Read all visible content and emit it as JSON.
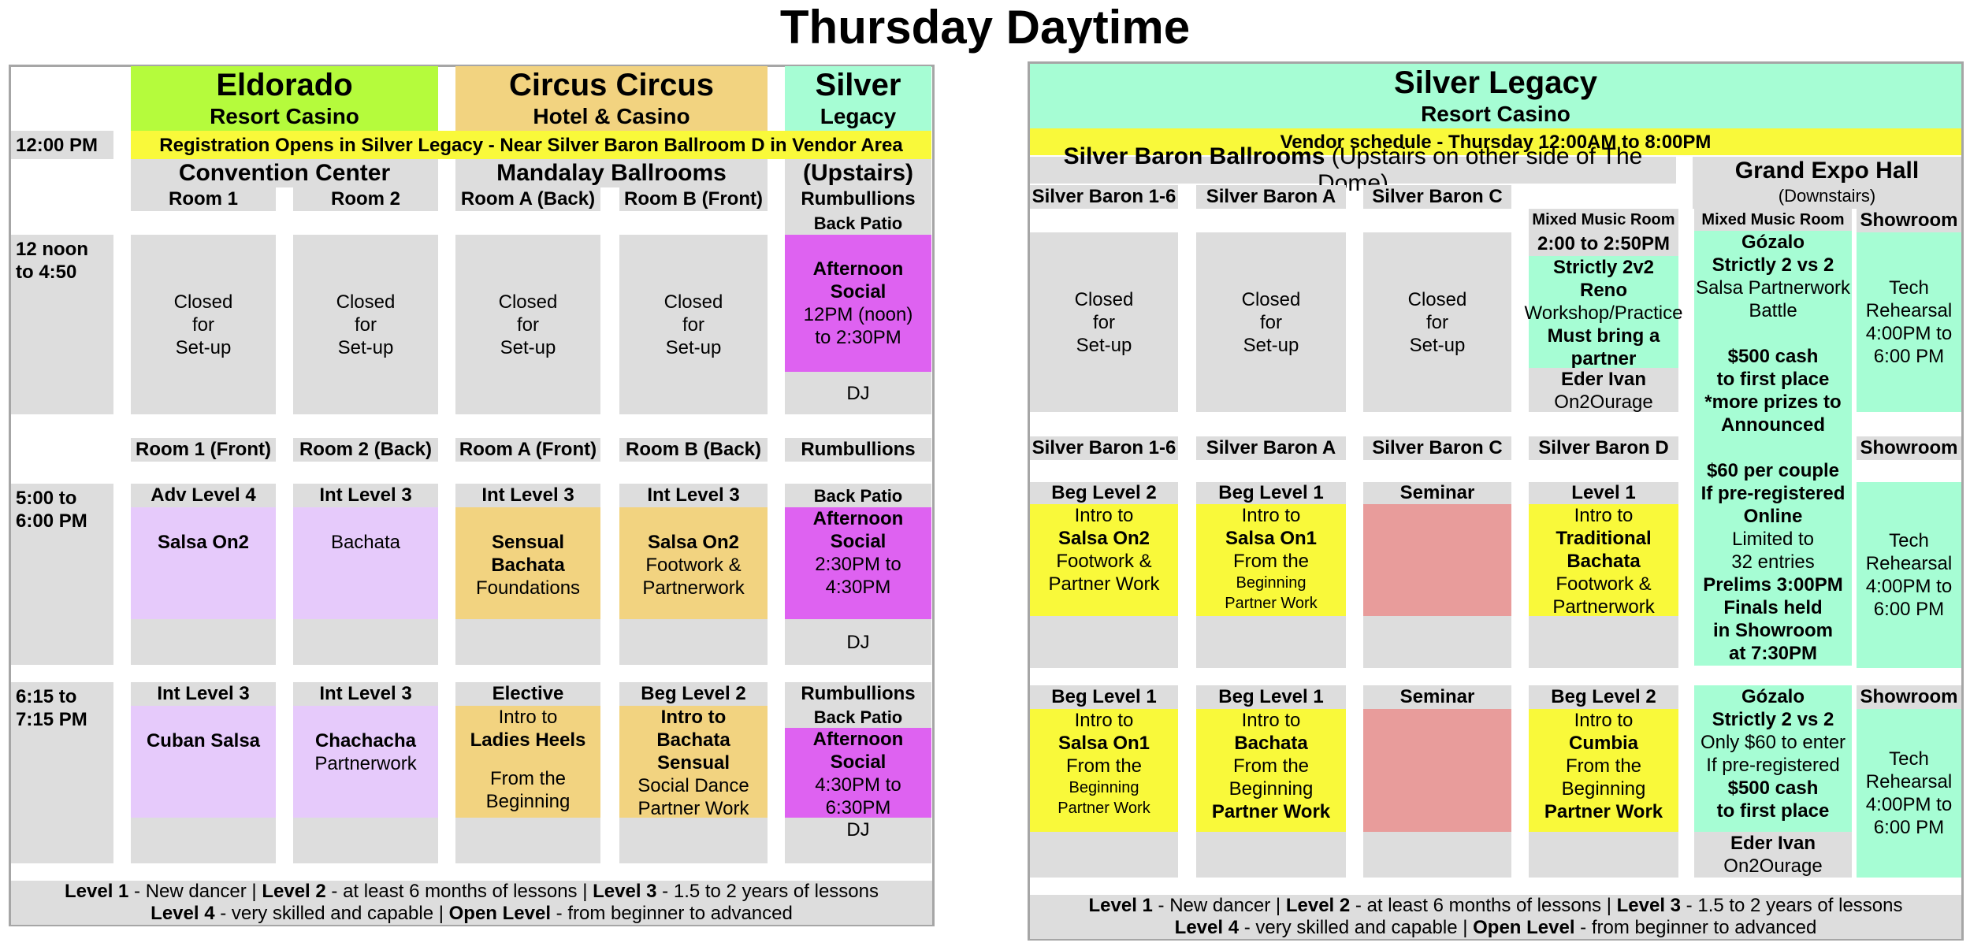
{
  "title": "Thursday Daytime",
  "left": {
    "venues": {
      "eldorado": {
        "name": "Eldorado",
        "sub": "Resort Casino",
        "area": "Convention Center"
      },
      "circus": {
        "name": "Circus Circus",
        "sub": "Hotel & Casino",
        "area": "Mandalay Ballrooms"
      },
      "silver": {
        "name": "Silver",
        "sub": "Legacy",
        "area": "(Upstairs)"
      }
    },
    "registration": "Registration Opens in Silver Legacy - Near Silver Baron Ballroom D in Vendor Area",
    "times": {
      "t1": "12:00 PM",
      "t2a": "12 noon",
      "t2b": "to 4:50",
      "t3a": "5:00 to",
      "t3b": "6:00 PM",
      "t4a": "6:15 to",
      "t4b": "7:15 PM"
    },
    "rooms_top": [
      "Room 1",
      "Room 2",
      "Room A (Back)",
      "Room B (Front)",
      "Rumbullions"
    ],
    "back_patio": "Back Patio",
    "closed": [
      "Closed",
      "for",
      "Set-up"
    ],
    "social1": [
      "Afternoon",
      "Social",
      "12PM (noon)",
      "to 2:30PM"
    ],
    "dj": "DJ",
    "rooms_mid": [
      "Room 1 (Front)",
      "Room 2 (Back)",
      "Room A (Front)",
      "Room B (Back)",
      "Rumbullions"
    ],
    "row3": {
      "levels": [
        "Adv Level 4",
        "Int Level 3",
        "Int Level 3",
        "Int Level 3",
        "Back Patio"
      ],
      "c1": "Salsa On2",
      "c2": "Bachata",
      "c3": [
        "Sensual",
        "Bachata",
        "Foundations"
      ],
      "c4": [
        "Salsa On2",
        "Footwork &",
        "Partnerwork"
      ],
      "c5": [
        "Afternoon",
        "Social",
        "2:30PM to",
        "4:30PM"
      ]
    },
    "row4": {
      "levels": [
        "Int Level 3",
        "Int Level 3",
        "Elective",
        "Beg Level 2",
        "Rumbullions"
      ],
      "back_patio": "Back Patio",
      "c1": "Cuban Salsa",
      "c2": [
        "Chachacha",
        "Partnerwork"
      ],
      "c3": [
        "Intro to",
        "Ladies Heels",
        "From the",
        "Beginning"
      ],
      "c4": [
        "Intro to",
        "Bachata",
        "Sensual",
        "Social Dance",
        "Partner Work"
      ],
      "c5": [
        "Afternoon",
        "Social",
        "4:30PM to",
        "6:30PM"
      ]
    },
    "footer": {
      "l1b": "Level 1",
      "l1": " - New dancer | ",
      "l2b": "Level 2",
      "l2": " - at least 6 months of lessons | ",
      "l3b": "Level 3",
      "l3": " - 1.5 to 2 years of lessons",
      "l4b": "Level 4",
      "l4": " - very skilled and capable | ",
      "lob": "Open Level",
      "lo": " - from beginner to advanced"
    }
  },
  "right": {
    "venue": "Silver Legacy",
    "sub": "Resort Casino",
    "vendor": "Vendor schedule - Thursday 12:00AM to 8:00PM",
    "ballrooms": "Silver Baron Ballrooms",
    "ballrooms_note": " (Upstairs on other side of The Dome)",
    "expo": "Grand Expo Hall",
    "expo_note": "(Downstairs)",
    "rooms_top": [
      "Silver Baron 1-6",
      "Silver Baron A",
      "Silver Baron C"
    ],
    "mixed": "Mixed Music Room",
    "mixed2": "Mixed Music Room",
    "showroom": "Showroom",
    "closed": [
      "Closed",
      "for",
      "Set-up"
    ],
    "workshop": [
      "2:00 to 2:50PM",
      "Strictly 2v2",
      "Reno",
      "Workshop/Practice",
      "Must bring a",
      "partner",
      "Eder Ivan",
      "On2Ourage"
    ],
    "gozalo": [
      "Gózalo",
      "Strictly 2 vs 2",
      "Salsa Partnerwork",
      "Battle",
      "",
      "$500 cash",
      "to first place",
      "*more prizes to",
      "Announced",
      "",
      "$60 per couple",
      "If pre-registered",
      "Online",
      "Limited to",
      "32 entries",
      "Prelims 3:00PM",
      "Finals held",
      "in Showroom",
      "at 7:30PM"
    ],
    "tech": [
      "Tech",
      "Rehearsal",
      "4:00PM to",
      "6:00 PM"
    ],
    "rooms_mid": [
      "Silver Baron 1-6",
      "Silver Baron A",
      "Silver Baron C",
      "Silver Baron D"
    ],
    "row3": {
      "levels": [
        "Beg Level 2",
        "Beg Level 1",
        "Seminar",
        "Level 1"
      ],
      "c1": [
        "Intro to",
        "Salsa On2",
        "Footwork &",
        "Partner Work"
      ],
      "c2": [
        "Intro to",
        "Salsa On1",
        "From the",
        "Beginning",
        "Partner Work"
      ],
      "c4": [
        "Intro to",
        "Traditional",
        "Bachata",
        "Footwork &",
        "Partnerwork"
      ]
    },
    "row4": {
      "levels": [
        "Beg Level 1",
        "Beg Level 1",
        "Seminar",
        "Beg Level 2"
      ],
      "c1": [
        "Intro to",
        "Salsa On1",
        "From the",
        "Beginning",
        "Partner Work"
      ],
      "c2": [
        "Intro to",
        "Bachata",
        "From the",
        "Beginning",
        "Partner Work"
      ],
      "c4": [
        "Intro to",
        "Cumbia",
        "From the",
        "Beginning",
        "Partner Work"
      ],
      "gozalo": [
        "Gózalo",
        "Strictly 2 vs 2",
        "Only $60 to enter",
        "If pre-registered",
        "$500 cash",
        "to first place",
        "Eder Ivan",
        "On2Ourage"
      ]
    },
    "footer": {
      "l1b": "Level 1",
      "l1": " - New dancer | ",
      "l2b": "Level 2",
      "l2": " - at least 6 months of lessons | ",
      "l3b": "Level 3",
      "l3": " - 1.5 to 2 years of lessons",
      "l4b": "Level 4",
      "l4": " - very skilled and capable | ",
      "lob": "Open Level",
      "lo": " - from beginner to advanced"
    }
  }
}
